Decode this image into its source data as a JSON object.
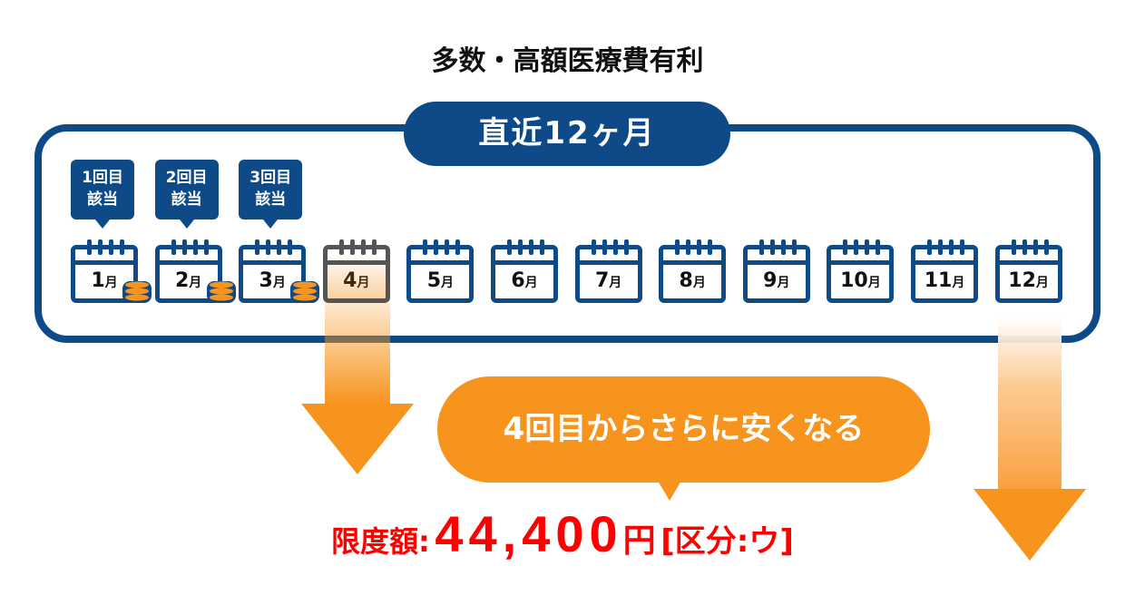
{
  "title": "多数・高額医療費有利",
  "period_label": "直近12ヶ月",
  "tags": [
    {
      "line1": "1回目",
      "line2": "該当"
    },
    {
      "line1": "2回目",
      "line2": "該当"
    },
    {
      "line1": "3回目",
      "line2": "該当"
    }
  ],
  "months": [
    {
      "num": "1",
      "unit": "月"
    },
    {
      "num": "2",
      "unit": "月"
    },
    {
      "num": "3",
      "unit": "月"
    },
    {
      "num": "4",
      "unit": "月"
    },
    {
      "num": "5",
      "unit": "月"
    },
    {
      "num": "6",
      "unit": "月"
    },
    {
      "num": "7",
      "unit": "月"
    },
    {
      "num": "8",
      "unit": "月"
    },
    {
      "num": "9",
      "unit": "月"
    },
    {
      "num": "10",
      "unit": "月"
    },
    {
      "num": "11",
      "unit": "月"
    },
    {
      "num": "12",
      "unit": "月"
    }
  ],
  "bubble_text": "4回目からさらに安くなる",
  "limit": {
    "label": "限度額:",
    "amount": "44,400",
    "yen": "円",
    "category": "[区分:ウ]"
  },
  "colors": {
    "navy": "#0d4a87",
    "orange": "#f7941d",
    "red": "#ff0000"
  }
}
